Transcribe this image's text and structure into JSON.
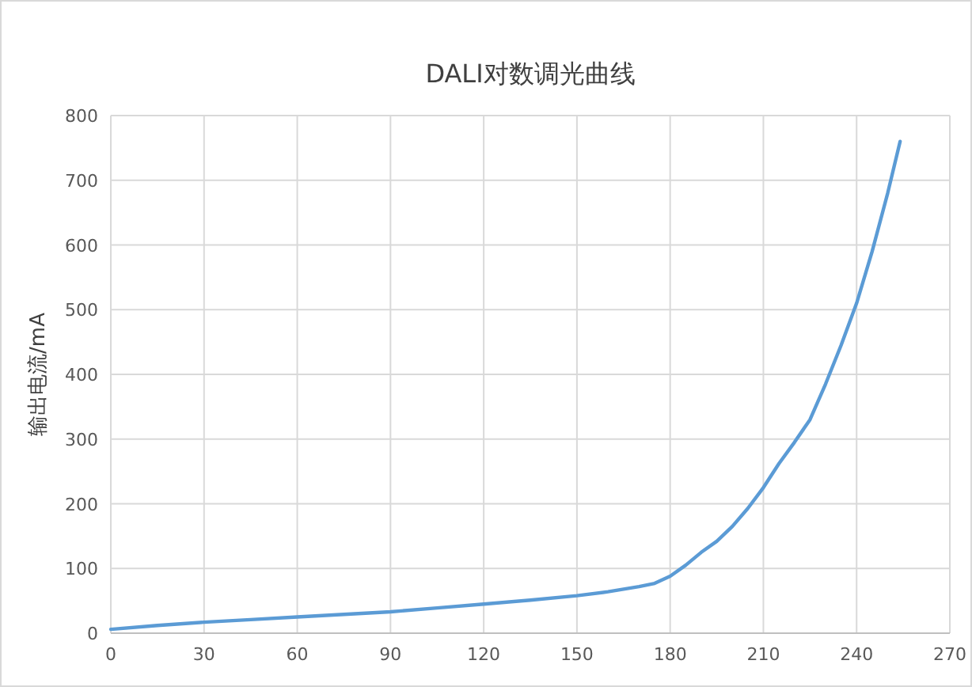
{
  "chart_data": {
    "type": "line",
    "title": "DALI对数调光曲线",
    "ylabel": "输出电流/mA",
    "x": [
      0,
      15,
      30,
      45,
      60,
      75,
      90,
      105,
      120,
      135,
      150,
      160,
      170,
      175,
      180,
      185,
      190,
      195,
      200,
      205,
      210,
      215,
      220,
      225,
      230,
      235,
      240,
      245,
      250,
      254
    ],
    "series": [
      {
        "color": "#5b9bd5",
        "values": [
          6,
          12,
          17,
          21,
          25,
          29,
          33,
          39,
          45,
          51,
          58,
          64,
          72,
          77,
          88,
          105,
          125,
          142,
          165,
          193,
          225,
          262,
          295,
          330,
          385,
          445,
          510,
          590,
          680,
          760
        ]
      }
    ],
    "xlim": [
      0,
      270
    ],
    "xticks": [
      0,
      30,
      60,
      90,
      120,
      150,
      180,
      210,
      240,
      270
    ],
    "ylim": [
      0,
      800
    ],
    "yticks": [
      0,
      100,
      200,
      300,
      400,
      500,
      600,
      700,
      800
    ],
    "grid": true,
    "line_style": "solid"
  }
}
